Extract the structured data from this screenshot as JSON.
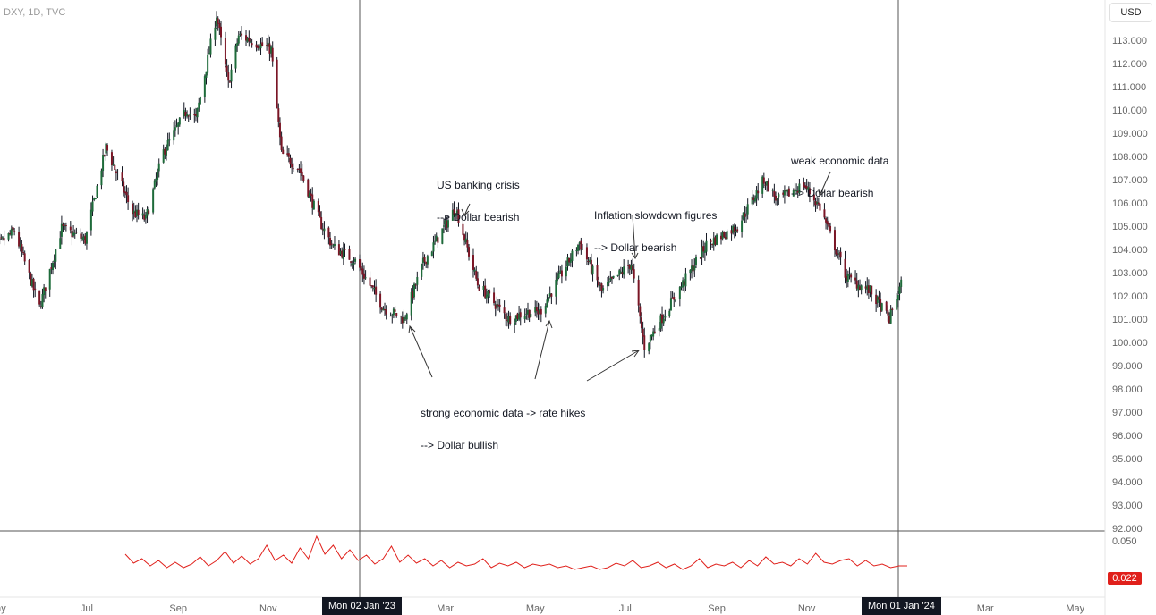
{
  "header": {
    "symbol": "DXY, 1D, TVC"
  },
  "currency_button": {
    "label": "USD"
  },
  "date_markers": [
    "Mon 02 Jan '23",
    "Mon 01 Jan '24"
  ],
  "indicator_value": "0.022",
  "colors": {
    "up": "#1e6b3a",
    "down": "#7a1525",
    "wick": "#131722",
    "indicator": "#e0201b",
    "divider": "#555555"
  },
  "annotations": {
    "banking": [
      "US banking crisis",
      "--> Dollar bearish"
    ],
    "inflation": [
      "Inflation slowdown figures",
      "--> Dollar bearish"
    ],
    "weak": [
      "weak economic data",
      "--> Dollar bearish"
    ],
    "strong": [
      "strong economic data -> rate hikes",
      "--> Dollar bullish"
    ]
  },
  "chart_data": [
    {
      "type": "candlestick",
      "title": "DXY, 1D, TVC",
      "ylim": [
        92.0,
        114.0
      ],
      "y_ticks": [
        "113.000",
        "112.000",
        "111.000",
        "110.000",
        "109.000",
        "108.000",
        "107.000",
        "106.000",
        "105.000",
        "104.000",
        "103.000",
        "102.000",
        "101.000",
        "100.000",
        "99.000",
        "98.000",
        "97.000",
        "96.000",
        "95.000",
        "94.000",
        "93.000",
        "92.000"
      ],
      "x_ticks": [
        "May",
        "Jul",
        "Sep",
        "Nov",
        "Mar",
        "May",
        "Jul",
        "Sep",
        "Nov",
        "Mar",
        "May"
      ],
      "close_path": {
        "dates": [
          "2022-04-25",
          "2022-05-13",
          "2022-05-30",
          "2022-06-14",
          "2022-06-30",
          "2022-07-14",
          "2022-08-01",
          "2022-08-10",
          "2022-08-22",
          "2022-09-07",
          "2022-09-13",
          "2022-09-27",
          "2022-10-05",
          "2022-10-12",
          "2022-10-20",
          "2022-11-03",
          "2022-11-10",
          "2022-11-22",
          "2022-12-06",
          "2022-12-15",
          "2022-12-30",
          "2023-01-18",
          "2023-02-01",
          "2023-02-14",
          "2023-03-08",
          "2023-03-23",
          "2023-04-13",
          "2023-04-25",
          "2023-05-04",
          "2023-05-31",
          "2023-06-15",
          "2023-07-05",
          "2023-07-14",
          "2023-08-02",
          "2023-08-25",
          "2023-09-15",
          "2023-10-03",
          "2023-10-12",
          "2023-10-30",
          "2023-11-10",
          "2023-11-28",
          "2023-12-14",
          "2023-12-27",
          "2024-01-04"
        ],
        "close": [
          103.8,
          104.8,
          101.5,
          104.9,
          104.4,
          108.4,
          105.6,
          105.3,
          108.2,
          110.0,
          109.6,
          114.1,
          111.1,
          113.2,
          113.0,
          112.6,
          108.1,
          107.5,
          105.2,
          104.1,
          103.5,
          101.5,
          101.0,
          103.4,
          105.8,
          102.5,
          101.0,
          101.3,
          101.3,
          104.3,
          102.2,
          103.4,
          99.8,
          101.8,
          104.2,
          105.0,
          107.0,
          106.1,
          106.8,
          105.8,
          102.8,
          102.2,
          101.0,
          102.5
        ]
      }
    },
    {
      "type": "line",
      "ylim": [
        0.0,
        0.06
      ],
      "y_ticks": [
        "0.050"
      ],
      "last_value": 0.022,
      "values": [
        0.035,
        0.025,
        0.03,
        0.022,
        0.028,
        0.02,
        0.026,
        0.02,
        0.024,
        0.032,
        0.022,
        0.028,
        0.038,
        0.025,
        0.033,
        0.024,
        0.03,
        0.045,
        0.028,
        0.034,
        0.025,
        0.042,
        0.03,
        0.055,
        0.035,
        0.045,
        0.03,
        0.04,
        0.028,
        0.034,
        0.024,
        0.03,
        0.044,
        0.026,
        0.034,
        0.025,
        0.03,
        0.022,
        0.028,
        0.02,
        0.026,
        0.022,
        0.024,
        0.03,
        0.02,
        0.025,
        0.022,
        0.026,
        0.02,
        0.024,
        0.022,
        0.024,
        0.02,
        0.022,
        0.018,
        0.02,
        0.022,
        0.018,
        0.02,
        0.025,
        0.022,
        0.028,
        0.02,
        0.022,
        0.026,
        0.02,
        0.024,
        0.018,
        0.022,
        0.03,
        0.02,
        0.024,
        0.022,
        0.026,
        0.02,
        0.028,
        0.022,
        0.032,
        0.024,
        0.026,
        0.022,
        0.03,
        0.024,
        0.036,
        0.026,
        0.024,
        0.028,
        0.03,
        0.022,
        0.028,
        0.022,
        0.024,
        0.02,
        0.022,
        0.022
      ]
    }
  ]
}
